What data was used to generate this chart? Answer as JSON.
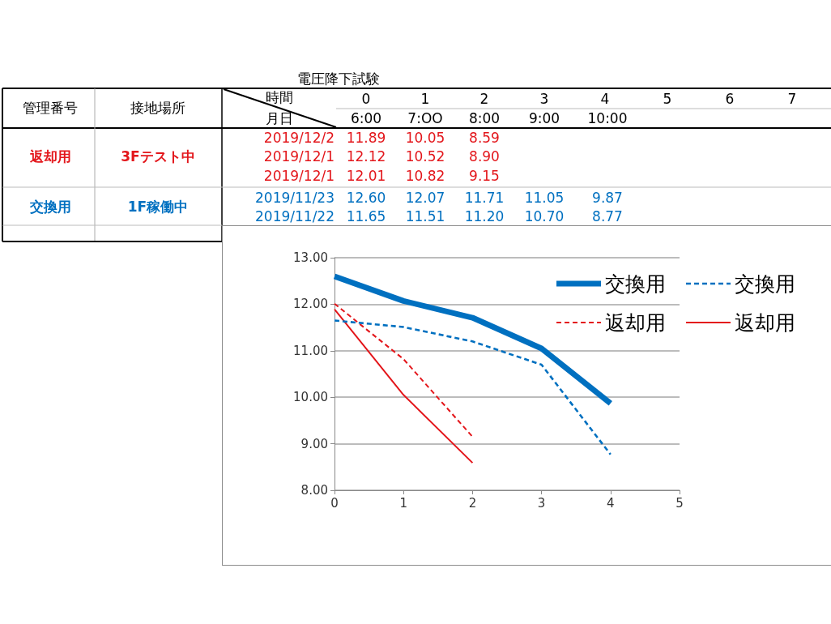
{
  "chart_data": {
    "type": "line",
    "title": "電圧降下試験",
    "x": [
      0,
      1,
      2,
      3,
      4
    ],
    "series": [
      {
        "name": "交換用",
        "color": "#0070c0",
        "line_style": "solid",
        "values": [
          12.6,
          12.07,
          11.71,
          11.05,
          9.87
        ]
      },
      {
        "name": "交換用",
        "color": "#0070c0",
        "line_style": "dashed",
        "values": [
          11.65,
          11.51,
          11.2,
          10.7,
          8.77
        ]
      },
      {
        "name": "返却用",
        "color": "#e3161b",
        "line_style": "dashed",
        "x": [
          0,
          1,
          2
        ],
        "values": [
          12.01,
          10.82,
          9.15
        ]
      },
      {
        "name": "返却用",
        "color": "#e3161b",
        "line_style": "solid",
        "x": [
          0,
          1,
          2
        ],
        "values": [
          11.89,
          10.05,
          8.59
        ]
      }
    ],
    "xlim": [
      0,
      5
    ],
    "xticks": [
      0,
      1,
      2,
      3,
      4,
      5
    ],
    "ylim": [
      8,
      13
    ],
    "yticks": [
      {
        "value": 8,
        "label": "8.00"
      },
      {
        "value": 9,
        "label": "9.00"
      },
      {
        "value": 10,
        "label": "10.00"
      },
      {
        "value": 11,
        "label": "11.00"
      },
      {
        "value": 12,
        "label": "12.00"
      },
      {
        "value": 13,
        "label": "13.00"
      }
    ],
    "grid": "y",
    "legend": "top right",
    "marker": "none",
    "annotations": [
      "管理番号",
      "接地場所",
      "時間",
      "月日",
      "0",
      "1",
      "2",
      "3",
      "4",
      "5",
      "6",
      "7",
      "6:00",
      "7:OO",
      "8:00",
      "9:00",
      "10:00",
      "返却用",
      "3Fテスト中",
      "2019/12/2",
      "11.89",
      "10.05",
      "8.59",
      "2019/12/1",
      "12.12",
      "10.52",
      "8.90",
      "2019/12/1",
      "12.01",
      "10.82",
      "9.15",
      "交換用",
      "1F稼働中",
      "2019/11/23",
      "12.60",
      "12.07",
      "11.71",
      "11.05",
      "9.87",
      "2019/11/22",
      "11.65",
      "11.51",
      "11.20",
      "10.70",
      "8.77"
    ]
  }
}
